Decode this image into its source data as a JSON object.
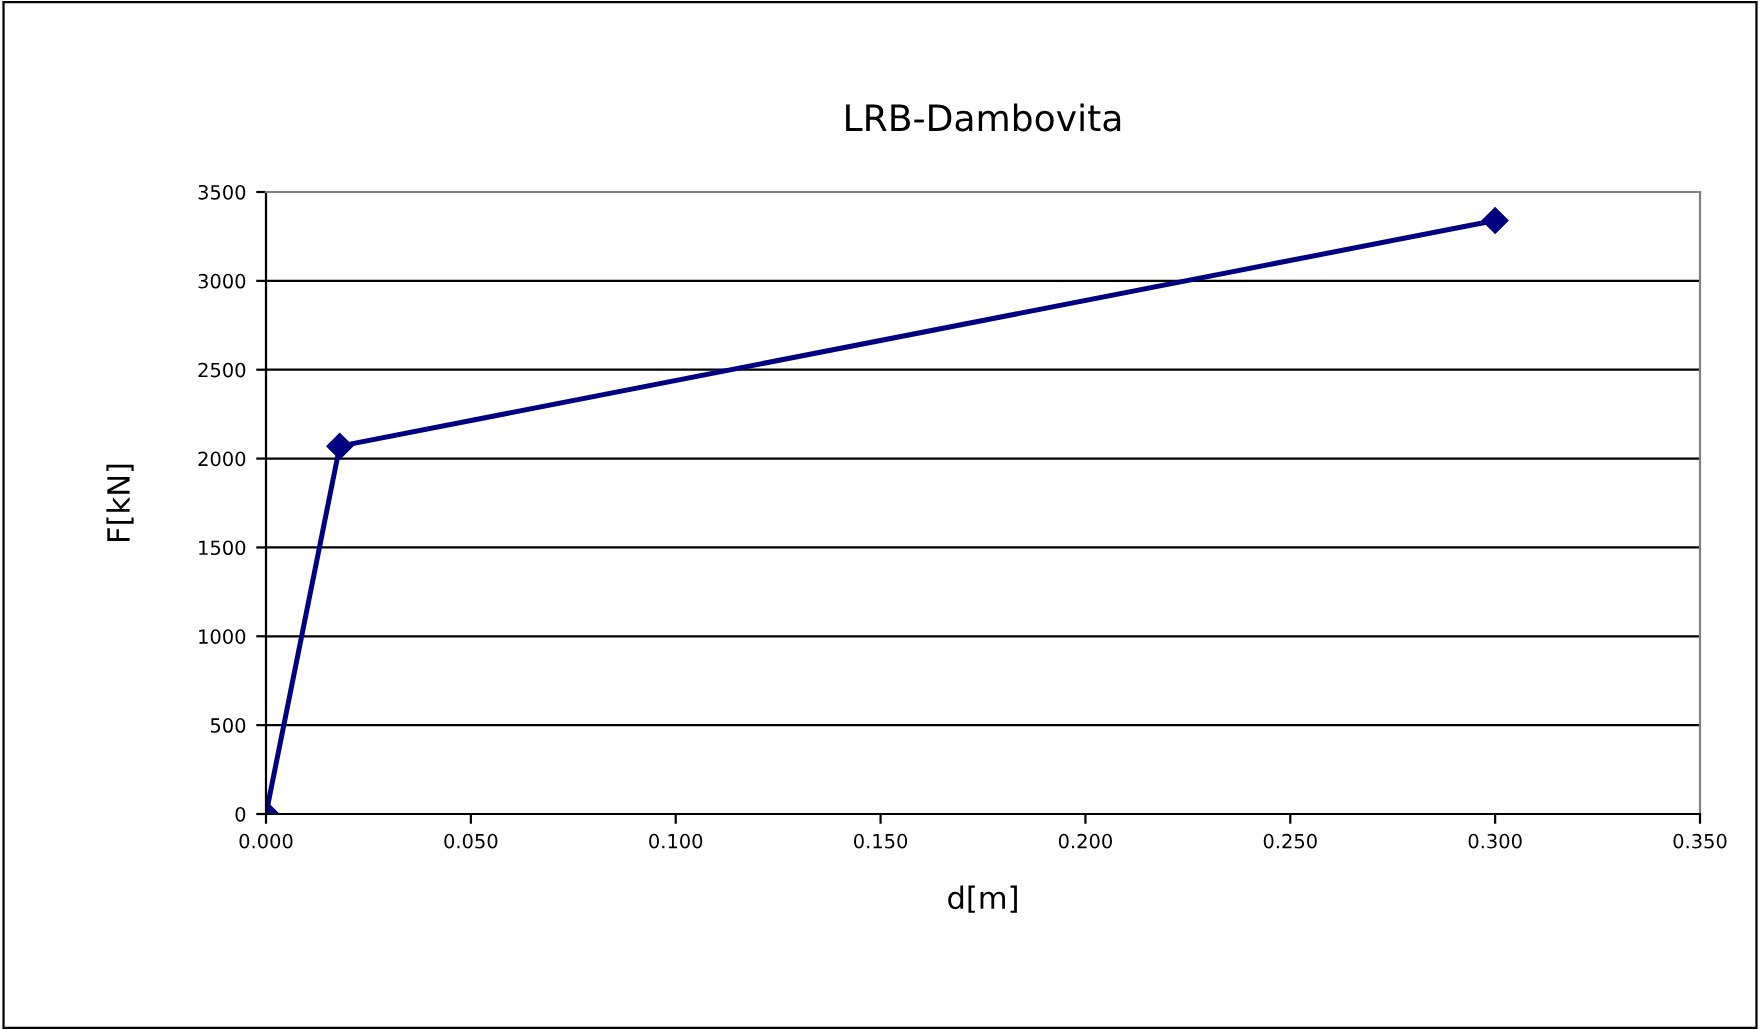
{
  "chart_data": {
    "type": "line",
    "title": "LRB-Dambovita",
    "xlabel": "d[m]",
    "ylabel": "F[kN]",
    "x": [
      0.0,
      0.018,
      0.3
    ],
    "series": [
      {
        "color": "#000080",
        "values": [
          0,
          2070,
          3340
        ]
      }
    ],
    "marker": "diamond",
    "line_style": "solid",
    "grid": "y",
    "xlim": [
      0,
      0.35
    ],
    "xticks": [
      {
        "value": 0,
        "label": "0.000"
      },
      {
        "value": 0.05,
        "label": "0.050"
      },
      {
        "value": 0.1,
        "label": "0.100"
      },
      {
        "value": 0.15,
        "label": "0.150"
      },
      {
        "value": 0.2,
        "label": "0.200"
      },
      {
        "value": 0.25,
        "label": "0.250"
      },
      {
        "value": 0.3,
        "label": "0.300"
      },
      {
        "value": 0.35,
        "label": "0.350"
      }
    ],
    "ylim": [
      0,
      3500
    ],
    "yticks": [
      0,
      500,
      1000,
      1500,
      2000,
      2500,
      3000,
      3500
    ]
  }
}
